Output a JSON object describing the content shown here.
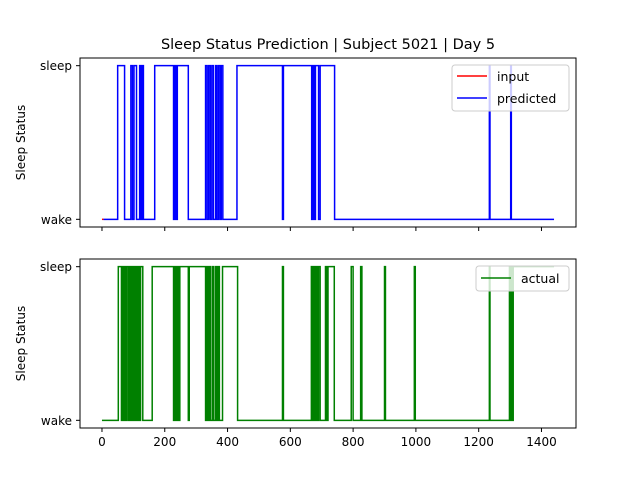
{
  "chart_data": [
    {
      "type": "line",
      "title": "Sleep Status Prediction | Subject 5021 | Day 5",
      "xlabel": "",
      "ylabel": "Sleep Status",
      "xlim": [
        -70,
        1510
      ],
      "ylim": [
        -0.05,
        1.05
      ],
      "x_ticks": [
        0,
        200,
        400,
        600,
        800,
        1000,
        1200,
        1400
      ],
      "x_tick_labels_visible": false,
      "y_ticks": [
        0,
        1
      ],
      "y_tick_labels": [
        "wake",
        "sleep"
      ],
      "legend_position": "upper-right",
      "series": [
        {
          "name": "input",
          "color": "#ff0000",
          "x": [
            0,
            5
          ],
          "y": [
            0,
            0
          ]
        },
        {
          "name": "predicted",
          "color": "#0000ff",
          "x": [
            5,
            50,
            50,
            72,
            72,
            92,
            92,
            97,
            97,
            102,
            102,
            110,
            110,
            120,
            120,
            124,
            124,
            128,
            128,
            132,
            132,
            168,
            168,
            228,
            228,
            232,
            232,
            236,
            236,
            240,
            240,
            275,
            275,
            330,
            330,
            335,
            335,
            340,
            340,
            345,
            345,
            350,
            350,
            355,
            355,
            362,
            362,
            366,
            366,
            371,
            371,
            376,
            376,
            380,
            380,
            385,
            385,
            430,
            430,
            575,
            575,
            578,
            578,
            668,
            668,
            672,
            672,
            676,
            676,
            680,
            680,
            690,
            690,
            695,
            695,
            741,
            741,
            1234,
            1234,
            1236,
            1236,
            1302,
            1302,
            1304,
            1304,
            1440
          ],
          "y": [
            0,
            0,
            1,
            1,
            0,
            0,
            1,
            1,
            0,
            0,
            1,
            1,
            0,
            0,
            1,
            1,
            0,
            0,
            1,
            1,
            0,
            0,
            1,
            1,
            0,
            0,
            1,
            1,
            0,
            0,
            1,
            1,
            0,
            0,
            1,
            1,
            0,
            0,
            1,
            1,
            0,
            0,
            1,
            1,
            0,
            0,
            1,
            1,
            0,
            0,
            1,
            1,
            0,
            0,
            1,
            1,
            0,
            0,
            1,
            1,
            0,
            0,
            1,
            1,
            0,
            0,
            1,
            1,
            0,
            0,
            1,
            1,
            0,
            0,
            1,
            1,
            0,
            0,
            1,
            1,
            0,
            0,
            1,
            1,
            0,
            0
          ]
        }
      ]
    },
    {
      "type": "line",
      "title": "",
      "xlabel": "",
      "ylabel": "Sleep Status",
      "xlim": [
        -70,
        1510
      ],
      "ylim": [
        -0.05,
        1.05
      ],
      "x_ticks": [
        0,
        200,
        400,
        600,
        800,
        1000,
        1200,
        1400
      ],
      "x_tick_labels": [
        "0",
        "200",
        "400",
        "600",
        "800",
        "1000",
        "1200",
        "1400"
      ],
      "y_ticks": [
        0,
        1
      ],
      "y_tick_labels": [
        "wake",
        "sleep"
      ],
      "legend_position": "upper-right",
      "series": [
        {
          "name": "actual",
          "color": "#008000",
          "x": [
            0,
            52,
            52,
            62,
            62,
            66,
            66,
            70,
            70,
            73,
            73,
            77,
            77,
            80,
            80,
            85,
            85,
            88,
            88,
            92,
            92,
            96,
            96,
            99,
            99,
            103,
            103,
            106,
            106,
            110,
            110,
            113,
            113,
            117,
            117,
            120,
            120,
            123,
            123,
            130,
            130,
            160,
            160,
            228,
            228,
            232,
            232,
            236,
            236,
            240,
            240,
            244,
            244,
            248,
            248,
            275,
            275,
            278,
            278,
            330,
            330,
            334,
            334,
            338,
            338,
            342,
            342,
            346,
            346,
            352,
            352,
            356,
            356,
            362,
            362,
            366,
            366,
            370,
            370,
            374,
            374,
            384,
            384,
            432,
            432,
            575,
            575,
            578,
            578,
            667,
            667,
            670,
            670,
            674,
            674,
            678,
            678,
            682,
            682,
            686,
            686,
            690,
            690,
            695,
            695,
            712,
            712,
            716,
            716,
            720,
            720,
            740,
            740,
            794,
            794,
            800,
            800,
            824,
            824,
            828,
            828,
            900,
            900,
            903,
            903,
            995,
            995,
            998,
            998,
            1234,
            1234,
            1236,
            1236,
            1298,
            1298,
            1300,
            1300,
            1302,
            1302,
            1304,
            1304,
            1306,
            1306,
            1308,
            1308,
            1310,
            1310,
            1440
          ],
          "y": [
            0,
            0,
            1,
            1,
            0,
            0,
            1,
            1,
            0,
            0,
            1,
            1,
            0,
            0,
            1,
            1,
            0,
            0,
            1,
            1,
            0,
            0,
            1,
            1,
            0,
            0,
            1,
            1,
            0,
            0,
            1,
            1,
            0,
            0,
            1,
            1,
            0,
            0,
            1,
            1,
            0,
            0,
            1,
            1,
            0,
            0,
            1,
            1,
            0,
            0,
            1,
            1,
            0,
            0,
            1,
            1,
            0,
            0,
            1,
            1,
            0,
            0,
            1,
            1,
            0,
            0,
            1,
            1,
            0,
            0,
            1,
            1,
            0,
            0,
            1,
            1,
            0,
            0,
            1,
            1,
            0,
            0,
            1,
            1,
            0,
            0,
            1,
            1,
            0,
            0,
            1,
            1,
            0,
            0,
            1,
            1,
            0,
            0,
            1,
            1,
            0,
            0,
            1,
            1,
            0,
            0,
            1,
            1,
            0,
            0,
            1,
            1,
            0,
            0,
            1,
            1,
            0,
            0,
            1,
            1,
            0,
            0,
            1,
            1,
            0,
            0,
            1,
            1,
            0,
            0,
            1,
            1,
            0,
            0,
            1,
            1,
            0,
            0,
            1,
            1,
            0,
            0,
            1,
            1,
            0,
            0,
            1,
            1
          ]
        }
      ]
    }
  ]
}
